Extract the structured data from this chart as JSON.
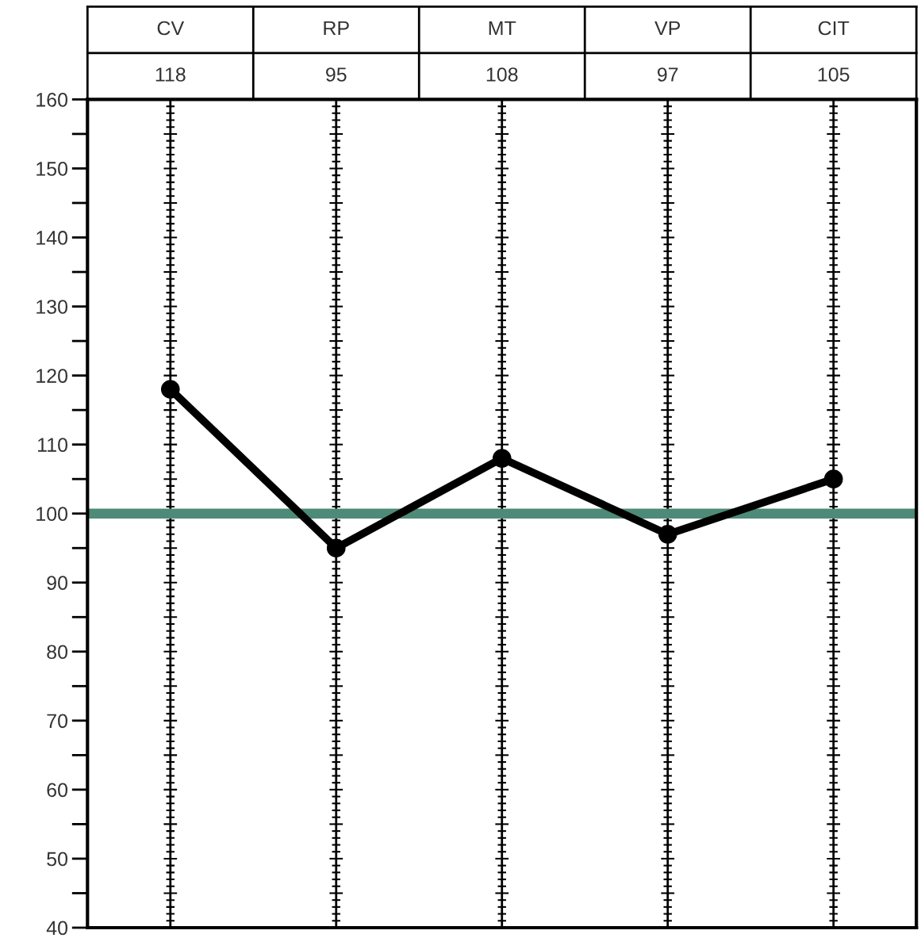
{
  "chart_data": {
    "type": "line",
    "categories": [
      "CV",
      "RP",
      "MT",
      "VP",
      "CIT"
    ],
    "series": [
      {
        "color": "#000000",
        "values": [
          118,
          95,
          108,
          97,
          105
        ]
      }
    ],
    "ylim": [
      40,
      160
    ],
    "yticks": [
      40,
      50,
      60,
      70,
      80,
      90,
      100,
      110,
      120,
      130,
      140,
      150,
      160
    ],
    "ref_lines": [
      {
        "axis": "y",
        "value": 100,
        "color": "#4e8a78"
      }
    ],
    "annotations": [
      "118",
      "95",
      "108",
      "97",
      "105"
    ],
    "grid": "x",
    "marker": "circle",
    "line_style": "solid",
    "legend": false
  }
}
